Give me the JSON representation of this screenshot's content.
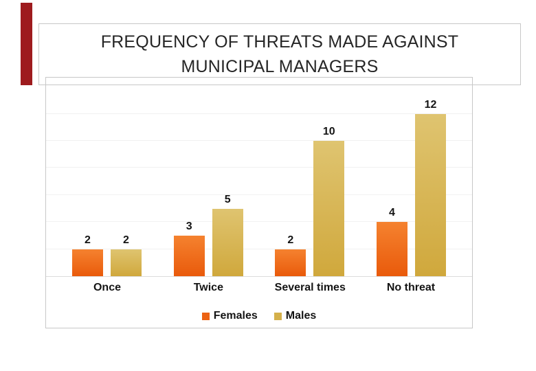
{
  "slide": {
    "accent_color": "#9E1B1E",
    "title_line1": "FREQUENCY OF THREATS MADE AGAINST",
    "title_line2": "MUNICIPAL MANAGERS"
  },
  "chart_data": {
    "type": "bar",
    "title": "FREQUENCY OF THREATS MADE AGAINST MUNICIPAL MANAGERS",
    "xlabel": "",
    "ylabel": "",
    "categories": [
      "Once",
      "Twice",
      "Several times",
      "No threat"
    ],
    "series": [
      {
        "name": "Females",
        "values": [
          2,
          3,
          2,
          4
        ],
        "color": "#EC6213",
        "gradient_top": "#F5822F",
        "gradient_bottom": "#E95A0B"
      },
      {
        "name": "Males",
        "values": [
          2,
          5,
          10,
          12
        ],
        "color": "#D4B04B",
        "gradient_top": "#DFC470",
        "gradient_bottom": "#D0A83C"
      }
    ],
    "data_labels": [
      [
        2,
        3,
        2,
        4
      ],
      [
        2,
        5,
        10,
        12
      ]
    ],
    "ylim": [
      0,
      14
    ],
    "gridline_step": 2,
    "grid": true,
    "legend_position": "bottom",
    "legend_labels": [
      "Females",
      "Males"
    ]
  }
}
